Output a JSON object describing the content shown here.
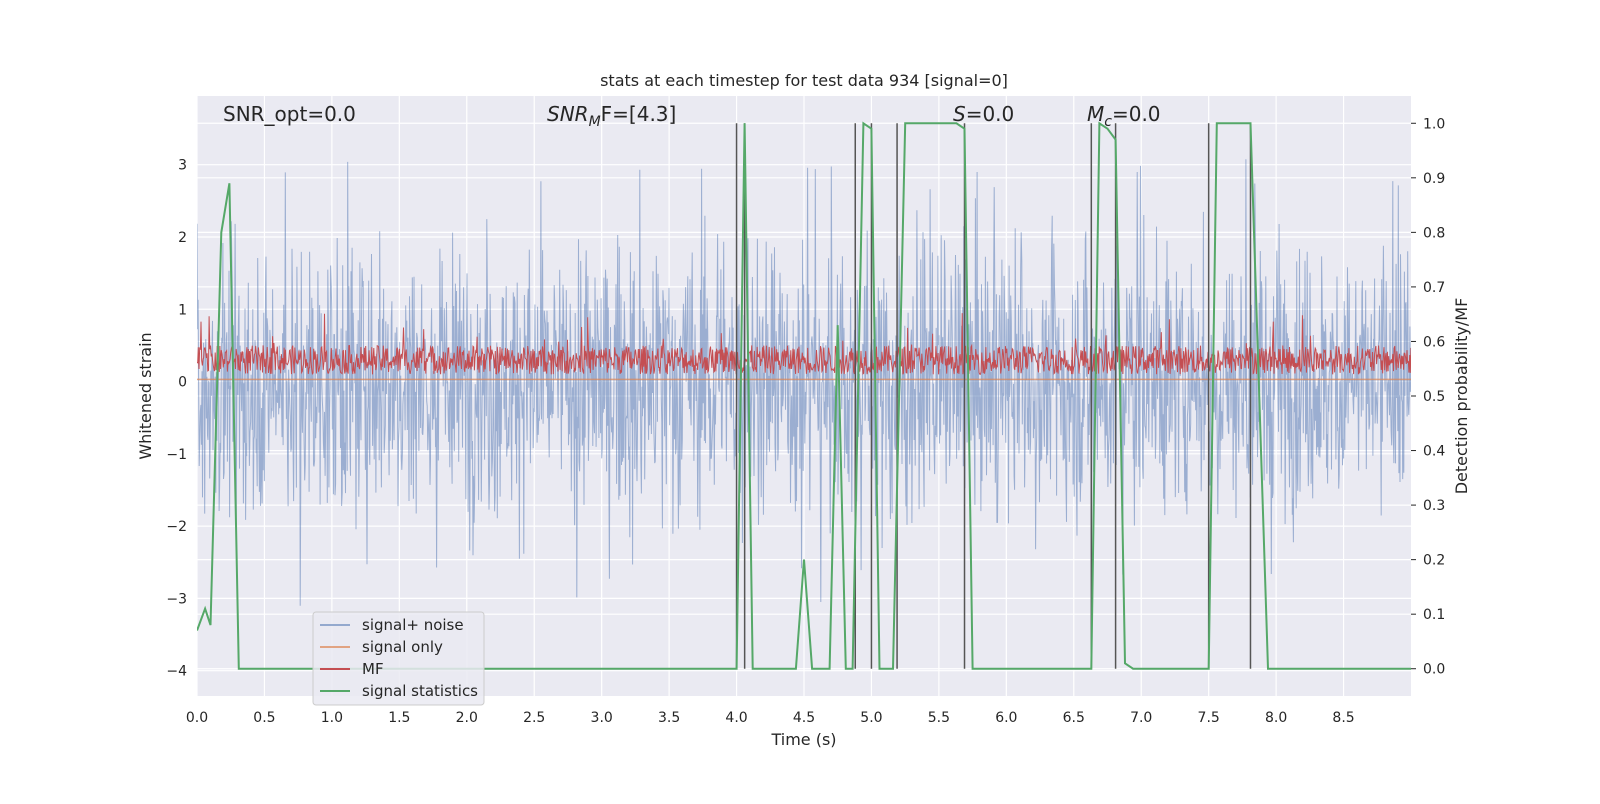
{
  "chart_data": {
    "type": "line",
    "title": "stats at each timestep for test data 934 [signal=0]",
    "xlabel": "Time (s)",
    "ylabel_left": "Whitened strain",
    "ylabel_right": "Detection probability/MF",
    "xlim": [
      0,
      9.0
    ],
    "ylim_left": [
      -4.35,
      3.95
    ],
    "ylim_right": [
      -0.05,
      1.05
    ],
    "xticks": [
      "0.0",
      "0.5",
      "1.0",
      "1.5",
      "2.0",
      "2.5",
      "3.0",
      "3.5",
      "4.0",
      "4.5",
      "5.0",
      "5.5",
      "6.0",
      "6.5",
      "7.0",
      "7.5",
      "8.0",
      "8.5"
    ],
    "yticks_left": [
      "3",
      "2",
      "1",
      "0",
      "−1",
      "−2",
      "−3",
      "−4"
    ],
    "yticks_right": [
      "1.0",
      "0.9",
      "0.8",
      "0.7",
      "0.6",
      "0.5",
      "0.4",
      "0.3",
      "0.2",
      "0.1",
      "0.0"
    ],
    "grid": true,
    "legend_position": "lower-left",
    "annotations": {
      "snr_opt": "SNR_opt=0.0",
      "snr_mf_main": "SNR",
      "snr_mf_sub": "M",
      "snr_mf_rest": "F=[4.3]",
      "s_main": "S",
      "s_rest": "=0.0",
      "mc_main": "M",
      "mc_sub": "c",
      "mc_rest": "=0.0"
    },
    "series": [
      {
        "name": "signal+ noise",
        "color": "#4c72b0",
        "axis": "left",
        "description": "whitened noise, roughly within ±1.7 with spikes to about ±3.2",
        "envelope_typical": 1.7,
        "envelope_peak": 3.2
      },
      {
        "name": "signal only",
        "color": "#dd8452",
        "axis": "left",
        "x": [
          0,
          9.0
        ],
        "y": [
          0.03,
          0.03
        ]
      },
      {
        "name": "MF",
        "color": "#c44e52",
        "axis": "left",
        "description": "matched filter output band, roughly 0.1 to 0.5 with peaks near 1.0",
        "band_low": 0.1,
        "band_high": 0.5
      },
      {
        "name": "signal statistics",
        "color": "#55a868",
        "axis": "right",
        "x": [
          0.0,
          0.06,
          0.1,
          0.18,
          0.24,
          0.31,
          4.0,
          4.06,
          4.12,
          4.44,
          4.5,
          4.56,
          4.69,
          4.75,
          4.81,
          4.86,
          4.94,
          5.0,
          5.06,
          5.16,
          5.25,
          5.63,
          5.69,
          5.75,
          6.63,
          6.69,
          6.75,
          6.81,
          6.88,
          6.94,
          7.5,
          7.56,
          7.81,
          7.94,
          9.0
        ],
        "y": [
          0.07,
          0.11,
          0.08,
          0.8,
          0.89,
          0.0,
          0.0,
          1.0,
          0.0,
          0.0,
          0.2,
          0.0,
          0.0,
          0.63,
          0.0,
          0.0,
          1.0,
          0.99,
          0.0,
          0.0,
          1.0,
          1.0,
          0.99,
          0.0,
          0.0,
          1.0,
          0.99,
          0.97,
          0.01,
          0.0,
          0.0,
          1.0,
          1.0,
          0.0,
          0.0
        ]
      }
    ],
    "vertical_markers": {
      "color": "#555555",
      "x": [
        4.0,
        4.06,
        4.88,
        5.0,
        5.19,
        5.69,
        6.63,
        6.81,
        7.5,
        7.81
      ]
    }
  }
}
